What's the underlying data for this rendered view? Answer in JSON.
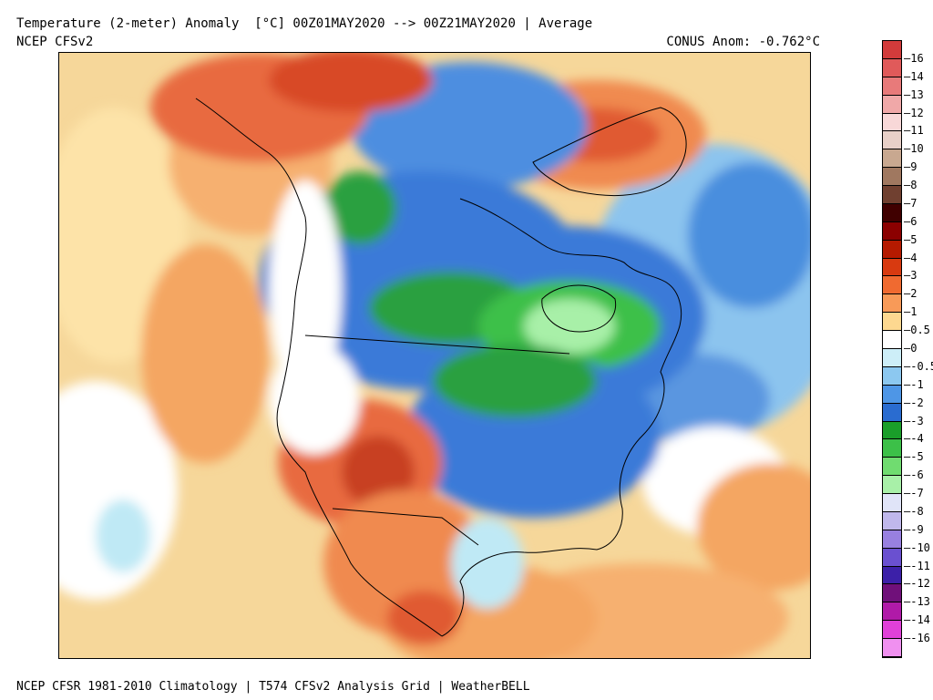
{
  "header": {
    "title": "Temperature (2-meter) Anomaly  [°C] 00Z01MAY2020 --> 00Z21MAY2020 | Average",
    "source": "NCEP CFSv2",
    "conus_anomaly": "CONUS Anom: -0.762°C"
  },
  "footer": "NCEP CFSR 1981-2010 Climatology | T574 CFSv2 Analysis Grid | WeatherBELL",
  "colorbar": {
    "labels": [
      "16",
      "14",
      "13",
      "12",
      "11",
      "10",
      "9",
      "8",
      "7",
      "6",
      "5",
      "4",
      "3",
      "2",
      "1",
      "0.5",
      "0",
      "-0.5",
      "-1",
      "-2",
      "-3",
      "-4",
      "-5",
      "-6",
      "-7",
      "-8",
      "-9",
      "-10",
      "-11",
      "-12",
      "-13",
      "-14",
      "-16"
    ],
    "colors": [
      "#d23b3b",
      "#e05a5a",
      "#e87a7a",
      "#f0a8a8",
      "#f8d8d8",
      "#e8d0c8",
      "#c8a890",
      "#a07860",
      "#704030",
      "#400000",
      "#8b0000",
      "#b51a00",
      "#d83a10",
      "#f06a30",
      "#f89a58",
      "#fdd890",
      "#ffffff",
      "#cdeef8",
      "#8cc8f0",
      "#4e96e6",
      "#2a6cd0",
      "#1a9e2a",
      "#3cc048",
      "#70dc70",
      "#a8f0a8",
      "#e0e4f8",
      "#c0b8ec",
      "#9880e0",
      "#6a50d0",
      "#3c20a8",
      "#70107a",
      "#b01aa8",
      "#e040d8",
      "#f090f0"
    ]
  },
  "map": {
    "region": "North America",
    "ocean_color": "#f8e8a8",
    "land_base_color": "#f4a05a"
  }
}
